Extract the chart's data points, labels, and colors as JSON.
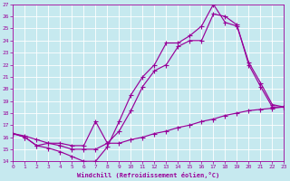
{
  "xlabel": "Windchill (Refroidissement éolien,°C)",
  "xlim": [
    0,
    23
  ],
  "ylim": [
    14,
    27
  ],
  "xticks": [
    0,
    1,
    2,
    3,
    4,
    5,
    6,
    7,
    8,
    9,
    10,
    11,
    12,
    13,
    14,
    15,
    16,
    17,
    18,
    19,
    20,
    21,
    22,
    23
  ],
  "yticks": [
    14,
    15,
    16,
    17,
    18,
    19,
    20,
    21,
    22,
    23,
    24,
    25,
    26,
    27
  ],
  "bg_color": "#c6e9ef",
  "line_color": "#990099",
  "grid_color": "#ffffff",
  "curve1_x": [
    0,
    1,
    2,
    3,
    4,
    5,
    6,
    7,
    8,
    9,
    10,
    11,
    12,
    13,
    14,
    15,
    16,
    17,
    18,
    19,
    20,
    21,
    22,
    23
  ],
  "curve1_y": [
    16.3,
    16.0,
    15.3,
    15.1,
    14.8,
    14.4,
    14.0,
    14.0,
    15.2,
    17.3,
    19.5,
    21.0,
    22.0,
    23.8,
    23.8,
    24.4,
    25.2,
    27.0,
    25.5,
    25.2,
    22.2,
    20.5,
    18.7,
    18.5
  ],
  "curve2_x": [
    0,
    1,
    2,
    3,
    4,
    5,
    6,
    7,
    8,
    9,
    10,
    11,
    12,
    13,
    14,
    15,
    16,
    17,
    18,
    19,
    20,
    21,
    22,
    23
  ],
  "curve2_y": [
    16.3,
    16.0,
    15.3,
    15.5,
    15.3,
    15.0,
    15.0,
    15.0,
    15.5,
    16.5,
    18.2,
    20.2,
    21.5,
    22.0,
    23.5,
    24.0,
    24.0,
    26.2,
    26.0,
    25.3,
    22.0,
    20.2,
    18.5,
    18.5
  ],
  "curve3_x": [
    0,
    1,
    2,
    3,
    4,
    5,
    6,
    7,
    8,
    9,
    10,
    11,
    12,
    13,
    14,
    15,
    16,
    17,
    18,
    19,
    20,
    21,
    22,
    23
  ],
  "curve3_y": [
    16.3,
    16.1,
    15.8,
    15.5,
    15.5,
    15.3,
    15.3,
    17.3,
    15.5,
    15.5,
    15.8,
    16.0,
    16.3,
    16.5,
    16.8,
    17.0,
    17.3,
    17.5,
    17.8,
    18.0,
    18.2,
    18.3,
    18.4,
    18.5
  ]
}
